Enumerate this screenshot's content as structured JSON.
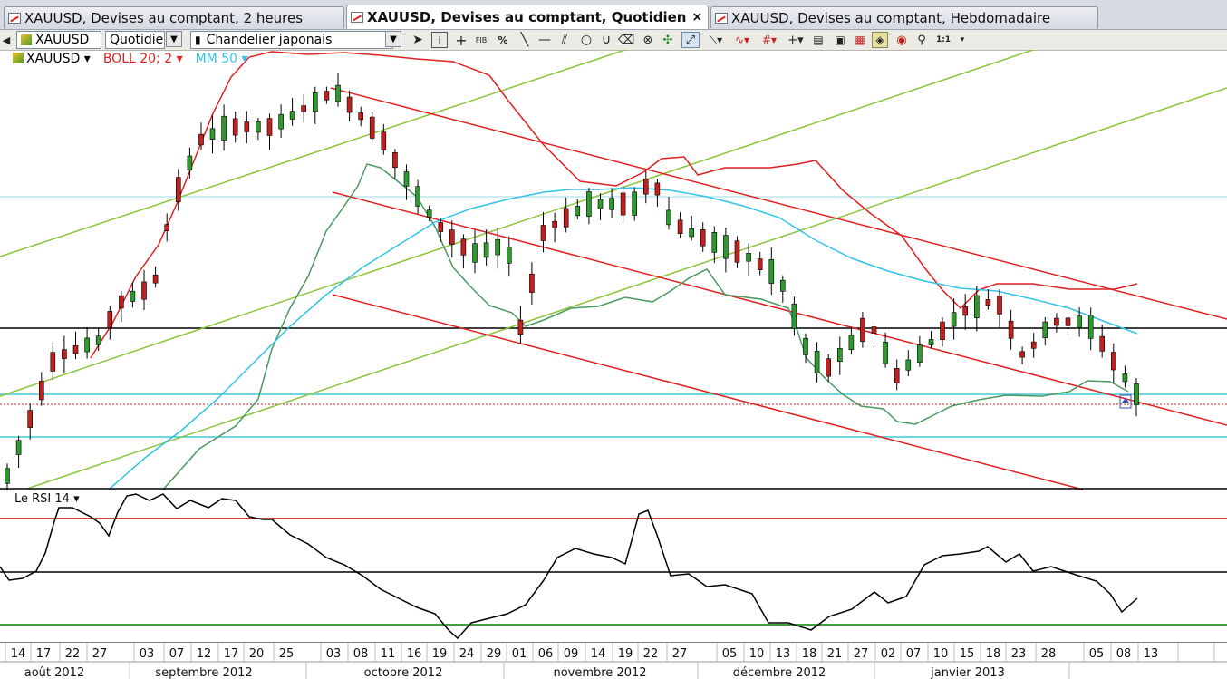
{
  "tabs": [
    {
      "label": "XAUUSD, Devises au comptant, 2 heures",
      "active": false
    },
    {
      "label": "XAUUSD, Devises au comptant, Quotidien",
      "active": true,
      "close": "×"
    },
    {
      "label": "XAUUSD, Devises au comptant, Hebdomadaire",
      "active": false
    }
  ],
  "toolbar": {
    "symbol": "XAUUSD",
    "period": "Quotidien",
    "chart_type": "Chandelier japonais",
    "tool_labels": {
      "fib": "FIB",
      "percent": "%",
      "zoom_ratio": "1:1"
    }
  },
  "legend": {
    "symbol": "XAUUSD ▾",
    "boll": "BOLL 20; 2 ▾",
    "ma": "MM 50 ▾"
  },
  "rsi": {
    "label": "Le RSI 14 ▾"
  },
  "colors": {
    "bollinger": "#e02020",
    "moving_average": "#33c3e8",
    "rsi_line": "#000000",
    "rsi_upper": "#c00000",
    "rsi_lower": "#008000",
    "channel": "#e02020",
    "uptrend": "#8cc43c",
    "support": "#40c8d8",
    "resistance": "#000000",
    "candle_bull": "#2e9a2e",
    "candle_bear": "#c02020"
  },
  "chart_data": {
    "type": "candlestick",
    "instrument": "XAUUSD",
    "timeframe": "Quotidien",
    "x_day_labels": [
      "14",
      "17",
      "22",
      "27",
      "03",
      "07",
      "12",
      "17",
      "20",
      "25",
      "03",
      "08",
      "11",
      "16",
      "19",
      "24",
      "29",
      "01",
      "06",
      "09",
      "14",
      "19",
      "22",
      "27",
      "05",
      "10",
      "13",
      "18",
      "21",
      "27",
      "02",
      "07",
      "10",
      "15",
      "18",
      "23",
      "28",
      "05",
      "08",
      "13"
    ],
    "x_month_labels": [
      "août 2012",
      "septembre 2012",
      "octobre 2012",
      "novembre 2012",
      "décembre 2012",
      "janvier 2013"
    ],
    "indicators": [
      "BOLL 20; 2",
      "MM 50",
      "Le RSI 14"
    ],
    "rsi_levels": [
      70,
      50,
      30
    ]
  }
}
